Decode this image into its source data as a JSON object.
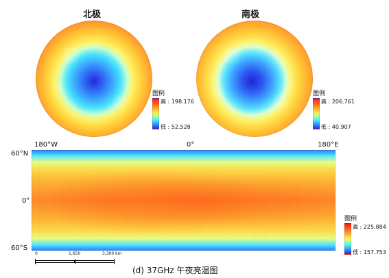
{
  "north": {
    "title": "北极",
    "legend": {
      "title": "图例",
      "high": "高 : 198.176",
      "low": "低 : 52.528"
    }
  },
  "south": {
    "title": "南极",
    "legend": {
      "title": "图例",
      "high": "高 : 206.761",
      "low": "低 : 40.907"
    }
  },
  "global": {
    "lon": {
      "left": "180°W",
      "center": "0°",
      "right": "180°E"
    },
    "lat": {
      "top": "60°N",
      "mid": "0°",
      "bottom": "60°S"
    },
    "legend": {
      "title": "图例",
      "high": "高 : 225.884",
      "low": "低 : 157.753"
    },
    "scalebar": {
      "labels": [
        "0",
        "1,650",
        "3,300 km"
      ]
    }
  },
  "caption": "(d) 37GHz 午夜亮温图"
}
